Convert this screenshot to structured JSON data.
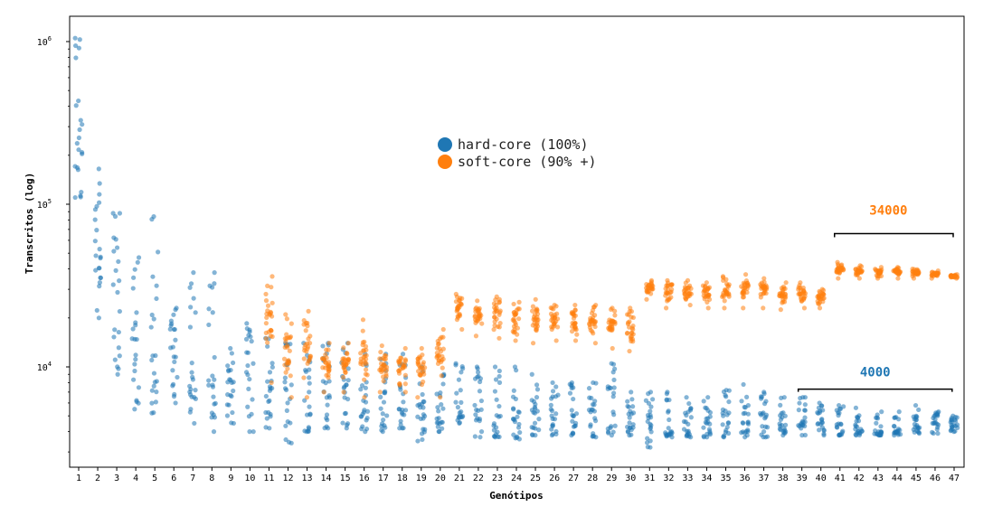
{
  "chart_data": {
    "type": "scatter",
    "xlabel": "Genótipos",
    "ylabel": "Transcritos (log)",
    "y_scale": "log",
    "ylim": [
      2600,
      1300000
    ],
    "xlim": [
      0.5,
      47.5
    ],
    "x_ticks": [
      "1",
      "2",
      "3",
      "4",
      "5",
      "6",
      "7",
      "8",
      "9",
      "10",
      "11",
      "12",
      "13",
      "14",
      "15",
      "16",
      "17",
      "18",
      "19",
      "20",
      "21",
      "22",
      "23",
      "24",
      "25",
      "26",
      "27",
      "28",
      "29",
      "30",
      "31",
      "32",
      "33",
      "34",
      "35",
      "36",
      "37",
      "38",
      "39",
      "40",
      "41",
      "42",
      "43",
      "44",
      "45",
      "46",
      "47"
    ],
    "y_ticks": [
      {
        "value": 10000,
        "base": "10",
        "exp": "4"
      },
      {
        "value": 100000,
        "base": "10",
        "exp": "5"
      },
      {
        "value": 1000000,
        "base": "10",
        "exp": "6"
      }
    ],
    "legend_placement": "center",
    "grid": false,
    "series": [
      {
        "name": "hard-core (100%)",
        "color": "#1f77b4",
        "approx_range_per_genotype": [
          [
            110000,
            1050000
          ],
          [
            20000,
            165000
          ],
          [
            9000,
            88000
          ],
          [
            5500,
            47000
          ],
          [
            5200,
            84000
          ],
          [
            6000,
            23000
          ],
          [
            4500,
            38000
          ],
          [
            4000,
            38000
          ],
          [
            4500,
            13000
          ],
          [
            4000,
            18500
          ],
          [
            4200,
            15000
          ],
          [
            3400,
            14000
          ],
          [
            4000,
            14000
          ],
          [
            4200,
            14000
          ],
          [
            4200,
            14000
          ],
          [
            4000,
            12000
          ],
          [
            4000,
            12000
          ],
          [
            4200,
            12000
          ],
          [
            3500,
            10000
          ],
          [
            4000,
            9000
          ],
          [
            4500,
            10500
          ],
          [
            3700,
            10000
          ],
          [
            3700,
            10000
          ],
          [
            3600,
            10000
          ],
          [
            3800,
            9000
          ],
          [
            3800,
            8000
          ],
          [
            3800,
            8000
          ],
          [
            3700,
            8000
          ],
          [
            3800,
            10500
          ],
          [
            3800,
            7000
          ],
          [
            3200,
            7000
          ],
          [
            3700,
            7000
          ],
          [
            3700,
            6500
          ],
          [
            3700,
            6500
          ],
          [
            3700,
            7200
          ],
          [
            3700,
            7800
          ],
          [
            3700,
            7000
          ],
          [
            3800,
            6500
          ],
          [
            3800,
            6500
          ],
          [
            3800,
            6000
          ],
          [
            3800,
            5800
          ],
          [
            3800,
            5600
          ],
          [
            3800,
            5300
          ],
          [
            3800,
            5300
          ],
          [
            3900,
            5800
          ],
          [
            3900,
            5300
          ],
          [
            4000,
            5000
          ]
        ]
      },
      {
        "name": "soft-core (90% +)",
        "color": "#ff7f0e",
        "approx_range_per_genotype": [
          null,
          null,
          null,
          null,
          null,
          null,
          null,
          null,
          null,
          null,
          [
            8000,
            36000
          ],
          [
            6500,
            21000
          ],
          [
            6500,
            22000
          ],
          [
            7000,
            14000
          ],
          [
            7000,
            14000
          ],
          [
            6500,
            19500
          ],
          [
            7000,
            13500
          ],
          [
            7000,
            13000
          ],
          [
            6500,
            13000
          ],
          [
            6500,
            17000
          ],
          [
            17000,
            28000
          ],
          [
            15500,
            25500
          ],
          [
            15000,
            27000
          ],
          [
            14500,
            25000
          ],
          [
            14000,
            26000
          ],
          [
            14500,
            24000
          ],
          [
            14500,
            24000
          ],
          [
            14000,
            24000
          ],
          [
            13000,
            23000
          ],
          [
            12500,
            23000
          ],
          [
            26000,
            34000
          ],
          [
            23000,
            34000
          ],
          [
            24000,
            34000
          ],
          [
            23000,
            33000
          ],
          [
            23000,
            36000
          ],
          [
            23000,
            37000
          ],
          [
            23000,
            35000
          ],
          [
            22500,
            33000
          ],
          [
            23000,
            33000
          ],
          [
            23000,
            30000
          ],
          [
            35000,
            44000
          ],
          [
            35000,
            42000
          ],
          [
            35000,
            41000
          ],
          [
            35000,
            41000
          ],
          [
            35000,
            40000
          ],
          [
            35000,
            39000
          ],
          [
            35000,
            37000
          ]
        ]
      }
    ],
    "annotations": [
      {
        "text": "34000",
        "color": "#ff7f0e",
        "bracket_from": 41,
        "bracket_to": 47,
        "y_value": 66000
      },
      {
        "text": "4000",
        "color": "#1f77b4",
        "bracket_from": 39,
        "bracket_to": 46.8,
        "y_value": 7300
      }
    ]
  }
}
